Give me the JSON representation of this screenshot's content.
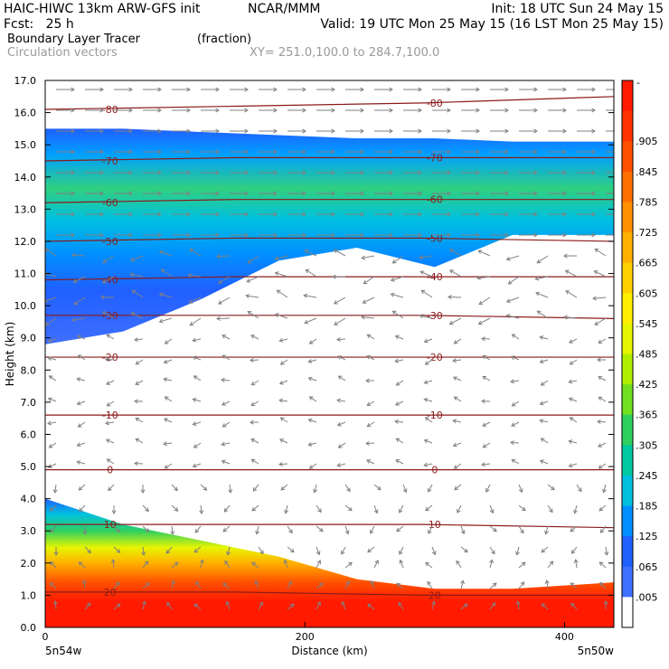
{
  "header": {
    "line1_left": "HAIC-HIWC 13km ARW-GFS init",
    "line1_mid": "NCAR/MMM",
    "line1_right": "Init: 18 UTC Sun 24 May 15",
    "line2_left": "Fcst:   25 h",
    "line2_right": "Valid: 19 UTC Mon 25 May 15 (16 LST Mon 25 May 15)",
    "line3_left": "Boundary Layer Tracer",
    "line3_mid": "(fraction)",
    "line4_left": "Circulation vectors",
    "line4_mid": "XY= 251.0,100.0 to 284.7,100.0"
  },
  "chart_data": {
    "type": "heatmap",
    "title": "Boundary Layer Tracer",
    "units": "(fraction)",
    "overlay": "Circulation vectors",
    "xlabel": "Distance (km)",
    "ylabel": "Height (km)",
    "xlim": [
      0,
      438
    ],
    "ylim": [
      0,
      17
    ],
    "x_ticks": [
      "0",
      "200",
      "400"
    ],
    "y_ticks": [
      "0.0",
      "1.0",
      "2.0",
      "3.0",
      "4.0",
      "5.0",
      "6.0",
      "7.0",
      "8.0",
      "9.0",
      "10.0",
      "11.0",
      "12.0",
      "13.0",
      "14.0",
      "15.0",
      "16.0",
      "17.0"
    ],
    "endpoint_left": "5n54w",
    "endpoint_right": "5n50w",
    "colorbar": {
      "top_label": "-",
      "labels": [
        ".905",
        ".845",
        ".785",
        ".725",
        ".665",
        ".605",
        ".545",
        ".485",
        ".425",
        ".365",
        ".305",
        ".245",
        ".185",
        ".125",
        ".065",
        ".005"
      ],
      "colors": [
        "#ff1a00",
        "#ff3300",
        "#ff5000",
        "#ff7000",
        "#ff9000",
        "#ffb000",
        "#ffd000",
        "#ffee00",
        "#e6f500",
        "#b0ee00",
        "#70e020",
        "#30d060",
        "#00c8a0",
        "#00c0e0",
        "#0090ff",
        "#2060ff",
        "#4070ff",
        "#ffffff"
      ]
    },
    "temperature_contours": [
      {
        "label": "-80",
        "heights_km": [
          16.1,
          16.2,
          16.3,
          16.5
        ]
      },
      {
        "label": "-70",
        "heights_km": [
          14.5,
          14.6,
          14.6,
          14.6
        ]
      },
      {
        "label": "-60",
        "heights_km": [
          13.2,
          13.3,
          13.3,
          13.3
        ]
      },
      {
        "label": "-50",
        "heights_km": [
          12.0,
          12.1,
          12.1,
          12.0
        ]
      },
      {
        "label": "-40",
        "heights_km": [
          10.8,
          10.9,
          10.9,
          10.9
        ]
      },
      {
        "label": "-30",
        "heights_km": [
          9.7,
          9.7,
          9.7,
          9.6
        ]
      },
      {
        "label": "-20",
        "heights_km": [
          8.4,
          8.4,
          8.4,
          8.4
        ]
      },
      {
        "label": "-10",
        "heights_km": [
          6.6,
          6.6,
          6.6,
          6.6
        ]
      },
      {
        "label": "0",
        "heights_km": [
          4.9,
          4.9,
          4.9,
          4.9
        ]
      },
      {
        "label": "10",
        "heights_km": [
          3.2,
          3.2,
          3.2,
          3.1
        ]
      },
      {
        "label": "20",
        "heights_km": [
          1.1,
          1.1,
          1.0,
          1.0
        ]
      }
    ],
    "tracer_field": {
      "upper_layer_bottom_km": [
        8.8,
        9.2,
        10.2,
        11.4,
        11.8,
        11.2,
        12.2,
        12.2
      ],
      "upper_layer_top_km": [
        15.5,
        15.5,
        15.4,
        15.3,
        15.2,
        15.2,
        15.1,
        15.1
      ],
      "lower_layer_top_km": [
        4.0,
        3.2,
        2.7,
        2.2,
        1.5,
        1.2,
        1.2,
        1.4
      ],
      "sample_x_km": [
        0,
        60,
        120,
        180,
        240,
        300,
        360,
        438
      ]
    }
  }
}
